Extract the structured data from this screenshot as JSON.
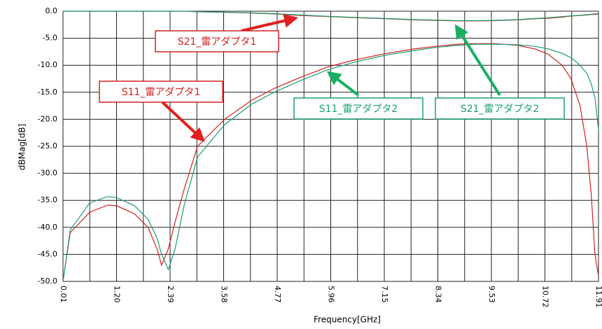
{
  "chart_data": {
    "type": "line",
    "xlabel": "Frequency[GHz]",
    "ylabel": "dBMag[dB]",
    "x": [
      0.01,
      0.17,
      0.6,
      1.0,
      1.2,
      1.6,
      1.9,
      2.1,
      2.2,
      2.35,
      2.5,
      2.7,
      3.0,
      3.6,
      4.2,
      4.7,
      5.3,
      5.9,
      6.5,
      7.2,
      7.8,
      8.3,
      8.8,
      9.2,
      9.6,
      10.1,
      10.5,
      10.8,
      11.1,
      11.3,
      11.5,
      11.65,
      11.75,
      11.83,
      11.91
    ],
    "series": [
      {
        "name": "S21_雷アダプタ1",
        "color": "#d42020",
        "values": [
          0,
          0,
          0,
          0,
          0,
          0,
          0,
          0,
          0,
          0,
          0,
          0,
          -0.1,
          -0.2,
          -0.35,
          -0.5,
          -0.8,
          -1.0,
          -1.2,
          -1.4,
          -1.6,
          -1.7,
          -1.8,
          -1.8,
          -1.75,
          -1.6,
          -1.4,
          -1.3,
          -1.1,
          -0.9,
          -0.8,
          -0.7,
          -0.6,
          -0.6,
          -0.5
        ]
      },
      {
        "name": "S11_雷アダプタ1",
        "color": "#d42020",
        "values": [
          -50,
          -41,
          -37.2,
          -35.9,
          -36,
          -37.5,
          -40,
          -44,
          -47,
          -44,
          -39,
          -33,
          -25,
          -20,
          -16.5,
          -14.3,
          -12.2,
          -10.3,
          -9,
          -7.8,
          -7,
          -6.5,
          -6.1,
          -6,
          -6,
          -6.3,
          -7,
          -8,
          -10,
          -12.5,
          -17.5,
          -25,
          -34,
          -45,
          -49
        ]
      },
      {
        "name": "S11_雷アダプタ2",
        "color": "#1aa070",
        "values": [
          -50,
          -40.5,
          -35.5,
          -34.3,
          -34.5,
          -36,
          -38.5,
          -42,
          -45,
          -47.8,
          -44,
          -36,
          -27,
          -21,
          -17.2,
          -15,
          -12.8,
          -10.8,
          -9.4,
          -8.1,
          -7.3,
          -6.7,
          -6.3,
          -6.1,
          -6.1,
          -6.2,
          -6.5,
          -7,
          -7.8,
          -8.6,
          -10,
          -11.5,
          -13.5,
          -16,
          -22
        ]
      },
      {
        "name": "S21_雷アダプタ2",
        "color": "#1aa070",
        "values": [
          0,
          0,
          0,
          0,
          0,
          0,
          0,
          0,
          0,
          0,
          0,
          0,
          -0.1,
          -0.2,
          -0.3,
          -0.45,
          -0.7,
          -0.95,
          -1.15,
          -1.35,
          -1.55,
          -1.65,
          -1.75,
          -1.75,
          -1.7,
          -1.55,
          -1.35,
          -1.2,
          -1.0,
          -0.85,
          -0.75,
          -0.65,
          -0.55,
          -0.5,
          -0.45
        ]
      }
    ],
    "xlim": [
      0.01,
      11.91
    ],
    "xticks": [
      {
        "value": 0.01,
        "label": "0.01"
      },
      {
        "value": 1.2,
        "label": "1.20"
      },
      {
        "value": 2.39,
        "label": "2.39"
      },
      {
        "value": 3.58,
        "label": "3.58"
      },
      {
        "value": 4.77,
        "label": "4.77"
      },
      {
        "value": 5.96,
        "label": "5.96"
      },
      {
        "value": 7.15,
        "label": "7.15"
      },
      {
        "value": 8.34,
        "label": "8.34"
      },
      {
        "value": 9.53,
        "label": "9.53"
      },
      {
        "value": 10.72,
        "label": "10.72"
      },
      {
        "value": 11.91,
        "label": "11.91"
      }
    ],
    "xminorticks": [
      0.605,
      1.795,
      2.985,
      4.175,
      5.365,
      6.555,
      7.745,
      8.935,
      10.125,
      11.315
    ],
    "ylim": [
      -50,
      0
    ],
    "yticks": [
      {
        "value": 0,
        "label": "0.0"
      },
      {
        "value": -5,
        "label": "-5.0"
      },
      {
        "value": -10,
        "label": "-10.0"
      },
      {
        "value": -15,
        "label": "-15.0"
      },
      {
        "value": -20,
        "label": "-20.0"
      },
      {
        "value": -25,
        "label": "-25.0"
      },
      {
        "value": -30,
        "label": "-30.0"
      },
      {
        "value": -35,
        "label": "-35.0"
      },
      {
        "value": -40,
        "label": "-40.0"
      },
      {
        "value": -45,
        "label": "-45.0"
      },
      {
        "value": -50,
        "label": "-50.0"
      }
    ],
    "grid": true
  }
}
